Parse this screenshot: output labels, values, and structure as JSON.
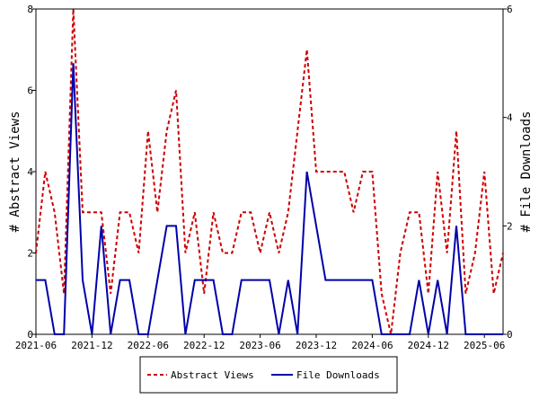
{
  "chart_data": {
    "type": "line",
    "ylabel_left": "# Abstract Views",
    "ylabel_right": "# File Downloads",
    "ylim_left": [
      0,
      8
    ],
    "ylim_right": [
      0,
      6
    ],
    "yticks_left": [
      "0",
      "2",
      "4",
      "6",
      "8"
    ],
    "yticks_right": [
      "0",
      "2",
      "4",
      "6"
    ],
    "xticks": [
      "2021-06",
      "2021-12",
      "2022-06",
      "2022-12",
      "2023-06",
      "2023-12",
      "2024-06",
      "2024-12",
      "2025-06"
    ],
    "x_range": [
      "2021-06",
      "2025-08"
    ],
    "grid": false,
    "legend_position": "bottom",
    "colors": {
      "abstract_views": "#cc0000",
      "file_downloads": "#0000aa"
    },
    "series": [
      {
        "name": "Abstract Views",
        "axis": "left",
        "style": "dashed",
        "values": [
          2,
          4,
          3,
          1,
          8,
          3,
          3,
          3,
          1,
          3,
          3,
          2,
          5,
          3,
          5,
          6,
          2,
          3,
          1,
          3,
          2,
          2,
          3,
          3,
          2,
          3,
          2,
          3,
          5,
          7,
          4,
          4,
          4,
          4,
          3,
          4,
          4,
          1,
          0,
          2,
          3,
          3,
          1,
          4,
          2,
          5,
          1,
          2,
          4,
          1,
          2
        ]
      },
      {
        "name": "File Downloads",
        "axis": "right",
        "style": "solid",
        "values": [
          1,
          1,
          0,
          0,
          5,
          1,
          0,
          2,
          0,
          1,
          1,
          0,
          0,
          1,
          2,
          2,
          0,
          1,
          1,
          1,
          0,
          0,
          1,
          1,
          1,
          1,
          0,
          1,
          0,
          3,
          2,
          1,
          1,
          1,
          1,
          1,
          1,
          0,
          0,
          0,
          0,
          1,
          0,
          1,
          0,
          2,
          0,
          0,
          0,
          0,
          0
        ]
      }
    ]
  }
}
